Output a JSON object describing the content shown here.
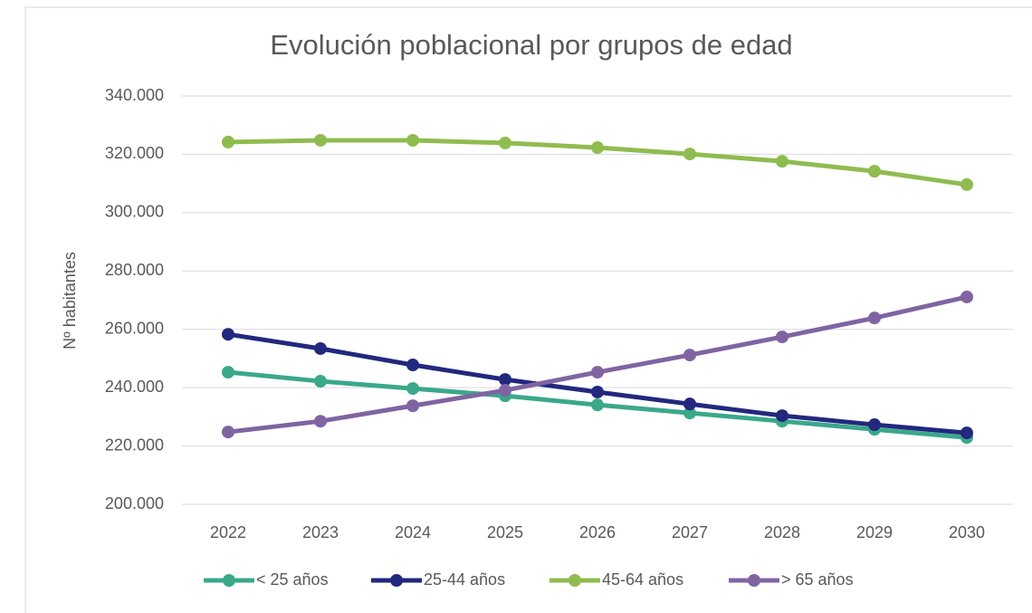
{
  "chart_data": {
    "type": "line",
    "title": "Evolución poblacional por grupos de edad",
    "y_label": "Nº habitantes",
    "categories": [
      "2022",
      "2023",
      "2024",
      "2025",
      "2026",
      "2027",
      "2028",
      "2029",
      "2030"
    ],
    "series": [
      {
        "name": "< 25 años",
        "color": "#3aa88a",
        "values": [
          245300,
          242200,
          239700,
          237200,
          234100,
          231300,
          228500,
          225700,
          222900
        ]
      },
      {
        "name": "25-44 años",
        "color": "#22287e",
        "values": [
          258300,
          253400,
          247800,
          242800,
          238500,
          234400,
          230400,
          227300,
          224500
        ]
      },
      {
        "name": "45-64 años",
        "color": "#8fbc4f",
        "values": [
          324200,
          324800,
          324800,
          323900,
          322300,
          320100,
          317600,
          314200,
          309600
        ]
      },
      {
        "name": "> 65 años",
        "color": "#8064a2",
        "values": [
          224800,
          228500,
          233800,
          239100,
          245300,
          251200,
          257400,
          263900,
          271100
        ]
      }
    ],
    "ylim": [
      200000,
      340000
    ],
    "yticks": [
      {
        "value": 200000,
        "label": "200.000"
      },
      {
        "value": 220000,
        "label": "220.000"
      },
      {
        "value": 240000,
        "label": "240.000"
      },
      {
        "value": 260000,
        "label": "260.000"
      },
      {
        "value": 280000,
        "label": "280.000"
      },
      {
        "value": 300000,
        "label": "300.000"
      },
      {
        "value": 320000,
        "label": "320.000"
      },
      {
        "value": 340000,
        "label": "340.000"
      }
    ],
    "grid": true,
    "legend": "bottom"
  }
}
